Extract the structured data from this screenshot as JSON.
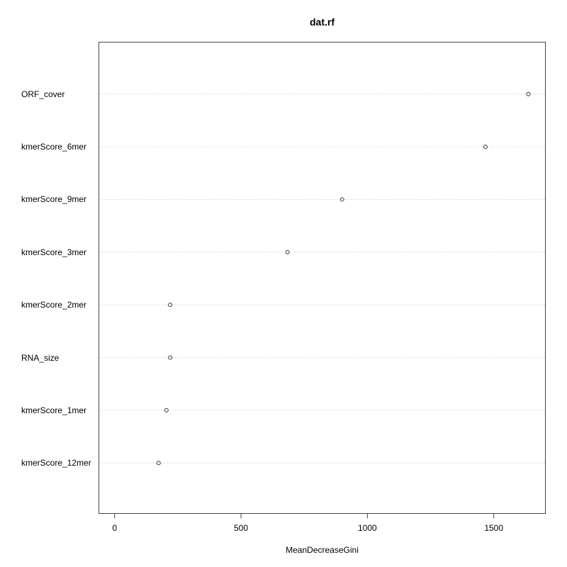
{
  "chart_data": {
    "type": "scatter",
    "title": "dat.rf",
    "xlabel": "MeanDecreaseGini",
    "ylabel": "",
    "categories": [
      "ORF_cover",
      "kmerScore_6mer",
      "kmerScore_9mer",
      "kmerScore_3mer",
      "kmerScore_2mer",
      "RNA_size",
      "kmerScore_1mer",
      "kmerScore_12mer"
    ],
    "values": [
      1637,
      1467,
      900,
      684,
      220,
      220,
      205,
      174
    ],
    "xticks": [
      0,
      500,
      1000,
      1500
    ],
    "xlim": [
      -64,
      1703
    ],
    "grid": "horizontal dotted line per category",
    "legend": "none",
    "colors": {
      "point_stroke": "#333333",
      "point_fill": "#ffffff",
      "grid": "#d0d0d0",
      "box": "#454545",
      "text": "#000000",
      "background": "#ffffff"
    }
  }
}
